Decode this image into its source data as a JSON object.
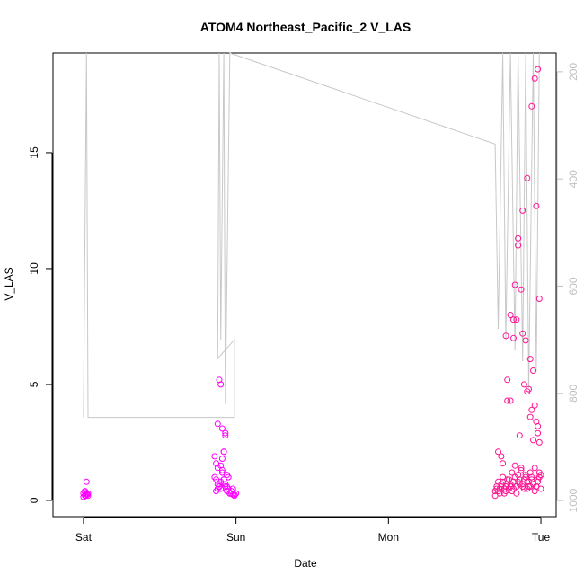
{
  "chart_data": {
    "type": "scatter",
    "title": "ATOM4 Northeast_Pacific_2 V_LAS",
    "xlabel": "Date",
    "ylabel": "V_LAS",
    "x_ticks": [
      "Sat",
      "Sun",
      "Mon",
      "Tue"
    ],
    "y_ticks": [
      "0",
      "5",
      "10",
      "15"
    ],
    "y_tick_values": [
      0,
      5,
      10,
      15
    ],
    "ylim": [
      -0.7,
      19.3
    ],
    "xlim_days": [
      -0.2,
      3.1
    ],
    "y2_ticks": [
      "200",
      "400",
      "600",
      "800",
      "1000"
    ],
    "y2_tick_values": [
      200,
      400,
      600,
      800,
      1000
    ],
    "y2lim": [
      1030,
      165
    ],
    "y2_reversed": true,
    "colors": {
      "points": "#ff1493",
      "points_alt": "#ff00ff",
      "line": "#c8c8c8",
      "axis": "#000000"
    },
    "secondary_line": {
      "name": "",
      "description_days_pressure": [
        [
          0.0,
          845
        ],
        [
          0.02,
          100
        ],
        [
          0.03,
          845
        ],
        [
          0.99,
          845
        ],
        [
          0.99,
          700
        ],
        [
          0.88,
          735
        ],
        [
          0.89,
          100
        ],
        [
          0.9,
          700
        ],
        [
          0.92,
          100
        ],
        [
          0.93,
          820
        ],
        [
          0.96,
          100
        ],
        [
          2.7,
          335
        ],
        [
          2.72,
          680
        ],
        [
          2.75,
          100
        ],
        [
          2.77,
          700
        ],
        [
          2.8,
          100
        ],
        [
          2.83,
          720
        ],
        [
          2.85,
          100
        ],
        [
          2.88,
          740
        ],
        [
          2.9,
          100
        ],
        [
          2.92,
          790
        ],
        [
          2.95,
          100
        ],
        [
          2.97,
          760
        ],
        [
          2.99,
          100
        ]
      ]
    },
    "series": [
      {
        "name": "",
        "x_days": [
          0.0,
          0.01,
          0.01,
          0.02,
          0.02,
          0.03,
          0.0,
          0.01,
          0.02,
          0.03,
          0.015,
          0.025,
          0.86,
          0.87,
          0.88,
          0.89,
          0.9,
          0.91,
          0.92,
          0.93,
          0.94,
          0.95,
          0.96,
          0.97,
          0.98,
          0.99,
          1.0,
          0.86,
          0.87,
          0.88,
          0.89,
          0.9,
          0.91,
          0.92,
          0.93,
          0.94,
          0.95,
          0.96,
          0.97,
          0.98,
          0.99,
          1.0,
          0.88,
          0.89,
          0.9,
          0.91,
          0.92,
          0.93,
          0.94,
          0.87,
          0.88,
          0.89,
          0.9,
          0.91,
          0.92,
          0.93,
          2.7,
          2.71,
          2.72,
          2.73,
          2.74,
          2.75,
          2.76,
          2.77,
          2.78,
          2.79,
          2.8,
          2.81,
          2.82,
          2.83,
          2.84,
          2.85,
          2.86,
          2.87,
          2.88,
          2.89,
          2.9,
          2.91,
          2.92,
          2.93,
          2.94,
          2.95,
          2.96,
          2.97,
          2.98,
          2.99,
          3.0,
          2.7,
          2.71,
          2.72,
          2.73,
          2.74,
          2.75,
          2.76,
          2.77,
          2.78,
          2.79,
          2.8,
          2.81,
          2.82,
          2.83,
          2.84,
          2.85,
          2.86,
          2.87,
          2.88,
          2.89,
          2.9,
          2.91,
          2.92,
          2.93,
          2.94,
          2.95,
          2.96,
          2.97,
          2.98,
          2.99,
          3.0,
          2.72,
          2.75,
          2.78,
          2.8,
          2.82,
          2.84,
          2.86,
          2.88,
          2.9,
          2.92,
          2.94,
          2.96,
          2.98,
          2.99,
          2.74,
          2.77,
          2.8,
          2.83,
          2.85,
          2.87,
          2.89,
          2.91,
          2.93,
          2.95,
          2.97,
          2.98,
          2.78,
          2.82,
          2.85,
          2.88,
          2.91,
          2.94,
          2.96,
          2.98,
          2.99,
          2.97,
          2.95,
          2.93
        ],
        "y": [
          0.3,
          0.2,
          0.4,
          0.3,
          0.25,
          0.2,
          0.15,
          0.35,
          0.8,
          0.3,
          0.2,
          0.25,
          1.0,
          1.6,
          0.5,
          0.6,
          0.8,
          1.2,
          0.9,
          0.7,
          0.4,
          0.5,
          0.3,
          0.3,
          0.25,
          0.2,
          0.3,
          1.9,
          0.4,
          1.4,
          0.7,
          0.5,
          1.8,
          2.1,
          2.8,
          0.6,
          1.0,
          0.3,
          0.4,
          0.5,
          0.25,
          0.3,
          3.3,
          5.2,
          5.0,
          3.1,
          2.1,
          2.9,
          1.1,
          0.9,
          0.7,
          0.6,
          1.5,
          1.3,
          0.9,
          0.6,
          0.2,
          0.5,
          0.4,
          0.3,
          0.6,
          0.8,
          0.5,
          0.4,
          0.7,
          0.9,
          0.6,
          1.2,
          0.5,
          1.0,
          0.3,
          0.8,
          0.7,
          1.4,
          0.6,
          0.9,
          1.1,
          0.5,
          0.8,
          0.6,
          1.0,
          0.7,
          0.4,
          0.6,
          0.9,
          1.2,
          0.5,
          0.4,
          0.6,
          0.8,
          0.5,
          0.7,
          1.0,
          0.3,
          0.6,
          0.9,
          0.5,
          0.7,
          0.4,
          0.8,
          1.5,
          0.6,
          1.1,
          0.9,
          1.3,
          0.7,
          0.5,
          1.0,
          0.8,
          0.6,
          1.2,
          0.9,
          0.7,
          1.4,
          0.6,
          0.8,
          1.0,
          1.1,
          2.1,
          1.6,
          5.2,
          4.3,
          7.0,
          7.8,
          2.8,
          7.2,
          6.9,
          4.8,
          3.9,
          4.1,
          3.2,
          2.5,
          1.9,
          7.1,
          8.0,
          9.3,
          11.0,
          9.1,
          5.0,
          4.7,
          3.6,
          2.6,
          3.4,
          2.9,
          4.3,
          7.8,
          11.3,
          12.5,
          13.9,
          17.0,
          18.2,
          18.6,
          8.7,
          12.7,
          5.6,
          6.1
        ]
      }
    ]
  }
}
